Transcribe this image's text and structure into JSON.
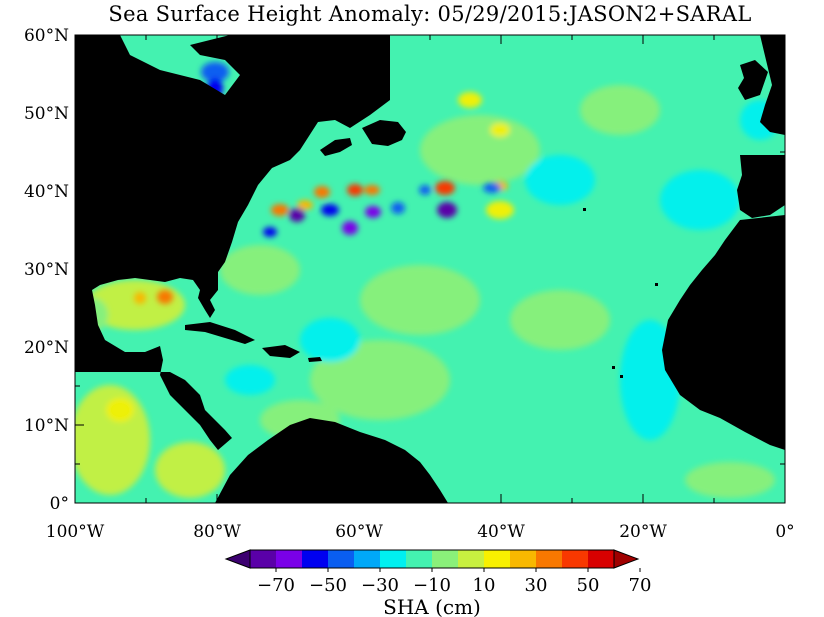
{
  "title": "Sea Surface Height Anomaly: 05/29/2015:JASON2+SARAL",
  "map": {
    "lon_range": [
      -100,
      0
    ],
    "lat_range": [
      0,
      60
    ],
    "x_ticks": [
      {
        "lon": -100,
        "label": "100°W"
      },
      {
        "lon": -80,
        "label": "80°W"
      },
      {
        "lon": -60,
        "label": "60°W"
      },
      {
        "lon": -40,
        "label": "40°W"
      },
      {
        "lon": -20,
        "label": "20°W"
      },
      {
        "lon": 0,
        "label": "0°"
      }
    ],
    "y_ticks": [
      {
        "lat": 0,
        "label": "0°"
      },
      {
        "lat": 10,
        "label": "10°N"
      },
      {
        "lat": 20,
        "label": "20°N"
      },
      {
        "lat": 30,
        "label": "30°N"
      },
      {
        "lat": 40,
        "label": "40°N"
      },
      {
        "lat": 50,
        "label": "50°N"
      },
      {
        "lat": 60,
        "label": "60°N"
      }
    ],
    "background_color": "#44f2b0",
    "land_color": "#000000"
  },
  "colorbar": {
    "title": "SHA (cm)",
    "labels": [
      "−70",
      "−50",
      "−30",
      "−10",
      "10",
      "30",
      "50",
      "70"
    ],
    "colors": [
      "#5a00a8",
      "#7a00e8",
      "#0000f0",
      "#0a5ef0",
      "#00a8f8",
      "#00f0f0",
      "#44f2b0",
      "#8af07a",
      "#c8f040",
      "#f8f000",
      "#f8b800",
      "#f87800",
      "#f83800",
      "#d80000"
    ],
    "under_color": "#3c0070",
    "over_color": "#a00000"
  }
}
